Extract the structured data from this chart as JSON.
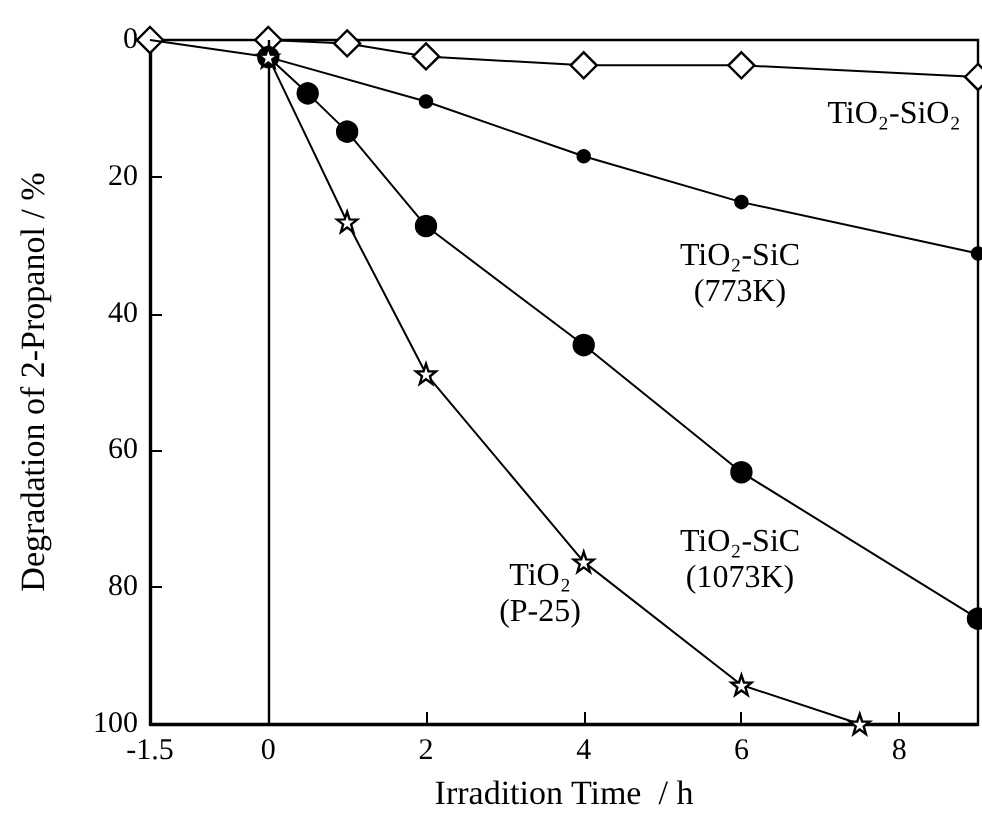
{
  "chart_data": {
    "type": "line",
    "xlabel": "Irradition Time  / h",
    "ylabel": "Degradation of 2-Propanol / %",
    "xlim": [
      -1.5,
      9
    ],
    "xticks": [
      -1.5,
      0,
      2,
      4,
      6,
      8
    ],
    "ylim": [
      100,
      0
    ],
    "yticks": [
      0,
      20,
      40,
      60,
      80,
      100
    ],
    "grid": false,
    "series": [
      {
        "name": "TiO₂-SiO₂",
        "color": "#000000",
        "marker": "diamond",
        "x": [
          -1.5,
          0,
          1,
          2,
          4,
          6,
          9
        ],
        "values": [
          0,
          0,
          0.5,
          2.4,
          3.7,
          3.7,
          5.4
        ]
      },
      {
        "color": "#000000",
        "x": [
          -1.5,
          0
        ],
        "values": [
          0,
          2.5
        ]
      },
      {
        "name": "TiO₂-SiC\n(773K)",
        "color": "#000000",
        "marker": "circle",
        "x": [
          0,
          2,
          4,
          6,
          9
        ],
        "values": [
          2.5,
          9,
          17,
          23.7,
          31.2
        ]
      },
      {
        "name": "TiO₂-SiC\n(1073K)",
        "color": "#000000",
        "marker": "circle",
        "x": [
          0,
          0.5,
          1,
          2,
          4,
          6,
          9
        ],
        "values": [
          2.5,
          7.8,
          13.4,
          27.2,
          44.6,
          63.2,
          84.6
        ]
      },
      {
        "name": "TiO₂\n(P-25)",
        "color": "#000000",
        "marker": "star",
        "x": [
          0,
          1,
          2,
          4,
          6,
          7.5
        ],
        "values": [
          2.5,
          26.6,
          48.8,
          76.3,
          94.3,
          100
        ]
      }
    ],
    "ref_lines": [
      {
        "axis": "x",
        "value": 0,
        "color": "#000000",
        "line_style": "solid"
      }
    ]
  }
}
